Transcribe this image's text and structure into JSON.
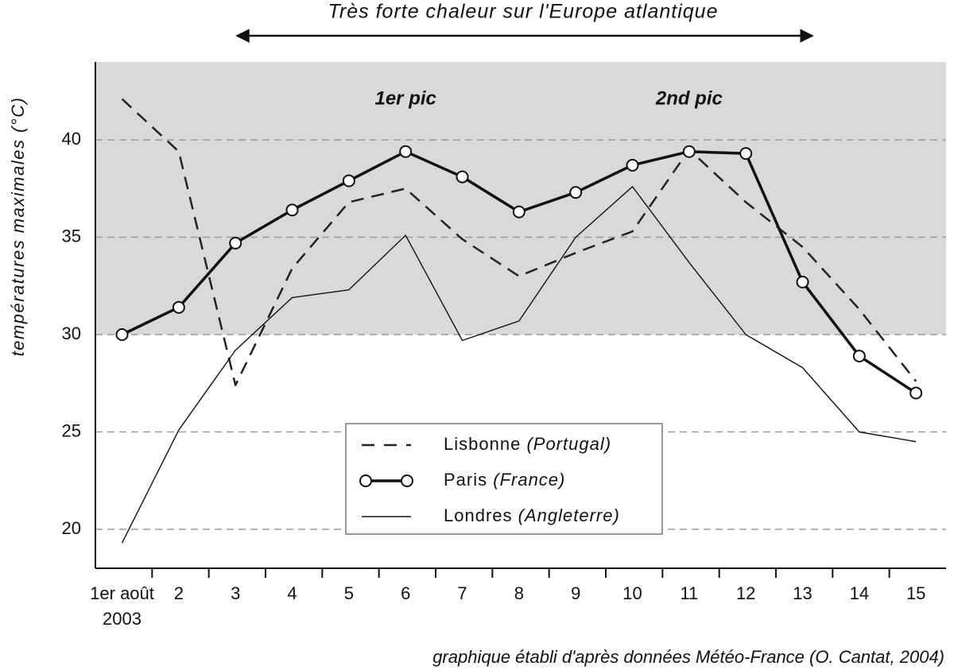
{
  "chart_data": {
    "type": "line",
    "title": "Très forte chaleur sur l'Europe atlantique",
    "ylabel": "températures maximales (°C)",
    "source": "graphique établi d'après données Météo-France (O. Cantat, 2004)",
    "annotations": [
      "1er pic",
      "2nd pic"
    ],
    "categories": [
      "1er août",
      "2",
      "3",
      "4",
      "5",
      "6",
      "7",
      "8",
      "9",
      "10",
      "11",
      "12",
      "13",
      "14",
      "15"
    ],
    "x_year": "2003",
    "series": [
      {
        "name": "Lisbonne",
        "legend_note": "(Portugal)",
        "color": "#222222",
        "dash": true,
        "markers": false,
        "width": 2.5,
        "values": [
          42.1,
          39.4,
          27.4,
          33.4,
          36.8,
          37.5,
          34.9,
          33.0,
          34.2,
          35.3,
          39.5,
          36.8,
          34.5,
          31.3,
          27.6
        ]
      },
      {
        "name": "Paris",
        "legend_note": "(France)",
        "color": "#111111",
        "dash": false,
        "markers": true,
        "width": 3.5,
        "values": [
          30.0,
          31.4,
          34.7,
          36.4,
          37.9,
          39.4,
          38.1,
          36.3,
          37.3,
          38.7,
          39.4,
          39.3,
          32.7,
          28.9,
          27.0
        ]
      },
      {
        "name": "Londres",
        "legend_note": "(Angleterre)",
        "color": "#111111",
        "dash": false,
        "markers": false,
        "width": 1.4,
        "values": [
          19.3,
          25.1,
          29.2,
          31.9,
          32.3,
          35.1,
          29.7,
          30.7,
          35.0,
          37.6,
          33.7,
          30.0,
          28.3,
          25.0,
          24.5
        ]
      }
    ],
    "ylim": [
      18,
      44
    ],
    "yticks": [
      20,
      25,
      30,
      35,
      40
    ],
    "grid": true,
    "shaded_above": 30
  }
}
